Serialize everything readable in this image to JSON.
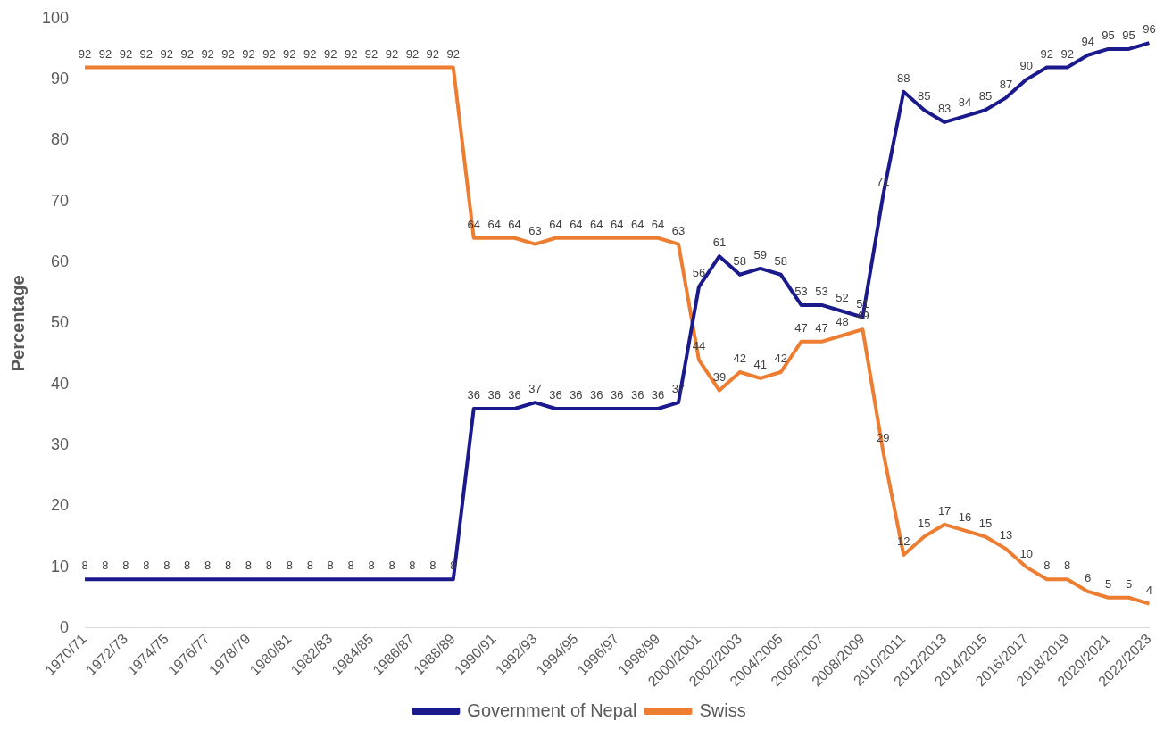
{
  "chart_data": {
    "type": "line",
    "ylabel": "Percentage",
    "categories": [
      "1970/71",
      null,
      "1972/73",
      null,
      "1974/75",
      null,
      "1976/77",
      null,
      "1978/79",
      null,
      "1980/81",
      null,
      "1982/83",
      null,
      "1984/85",
      null,
      "1986/87",
      null,
      "1988/89",
      null,
      "1990/91",
      null,
      "1992/93",
      null,
      "1994/95",
      null,
      "1996/97",
      null,
      "1998/99",
      null,
      "2000/2001",
      null,
      "2002/2003",
      null,
      "2004/2005",
      null,
      "2006/2007",
      null,
      "2008/2009",
      null,
      "2010/2011",
      null,
      "2012/2013",
      null,
      "2014/2015",
      null,
      "2016/2017",
      null,
      "2018/2019",
      null,
      "2020/2021",
      null,
      "2022/2023"
    ],
    "series": [
      {
        "name": "Government of Nepal",
        "color": "#1a1a8c",
        "values": [
          8,
          8,
          8,
          8,
          8,
          8,
          8,
          8,
          8,
          8,
          8,
          8,
          8,
          8,
          8,
          8,
          8,
          8,
          8,
          36,
          36,
          36,
          37,
          36,
          36,
          36,
          36,
          36,
          36,
          37,
          56,
          61,
          58,
          59,
          58,
          53,
          53,
          52,
          51,
          71,
          88,
          85,
          83,
          84,
          85,
          87,
          90,
          92,
          92,
          94,
          95,
          95,
          96
        ]
      },
      {
        "name": "Swiss",
        "color": "#ed7d31",
        "values": [
          92,
          92,
          92,
          92,
          92,
          92,
          92,
          92,
          92,
          92,
          92,
          92,
          92,
          92,
          92,
          92,
          92,
          92,
          92,
          64,
          64,
          64,
          63,
          64,
          64,
          64,
          64,
          64,
          64,
          63,
          44,
          39,
          42,
          41,
          42,
          47,
          47,
          48,
          49,
          29,
          12,
          15,
          17,
          16,
          15,
          13,
          10,
          8,
          8,
          6,
          5,
          5,
          4
        ]
      }
    ],
    "ylim": [
      0,
      100
    ],
    "yticks": [
      0,
      10,
      20,
      30,
      40,
      50,
      60,
      70,
      80,
      90,
      100
    ],
    "grid": false,
    "legend": "bottom",
    "marker": "none",
    "line_style": "solid",
    "data_labels": true
  }
}
